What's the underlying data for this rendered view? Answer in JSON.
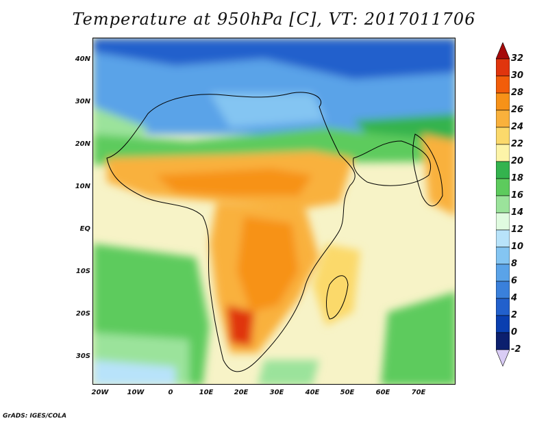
{
  "title": "Temperature at 950hPa [C], VT: 2017011706",
  "credit": "GrADS: IGES/COLA",
  "lat_labels": [
    "40N",
    "30N",
    "20N",
    "10N",
    "EQ",
    "10S",
    "20S",
    "30S"
  ],
  "lon_labels": [
    "20W",
    "10W",
    "0",
    "10E",
    "20E",
    "30E",
    "40E",
    "50E",
    "60E",
    "70E"
  ],
  "colorbar": {
    "unit": "C",
    "ticks": [
      "32",
      "30",
      "28",
      "26",
      "24",
      "22",
      "20",
      "18",
      "16",
      "14",
      "12",
      "10",
      "8",
      "6",
      "4",
      "2",
      "0",
      "-2"
    ],
    "colors": [
      "#a50a0a",
      "#e0350d",
      "#f25d0a",
      "#f79218",
      "#f9b13c",
      "#fbd96b",
      "#fdf4a8",
      "#34b34e",
      "#5dcb5d",
      "#9be39b",
      "#e0fbe0",
      "#b8e3fa",
      "#84c5f2",
      "#5aa3e8",
      "#3a80db",
      "#2260cc",
      "#0a3fb0",
      "#0c1f6e",
      "#d9ccf5"
    ]
  }
}
